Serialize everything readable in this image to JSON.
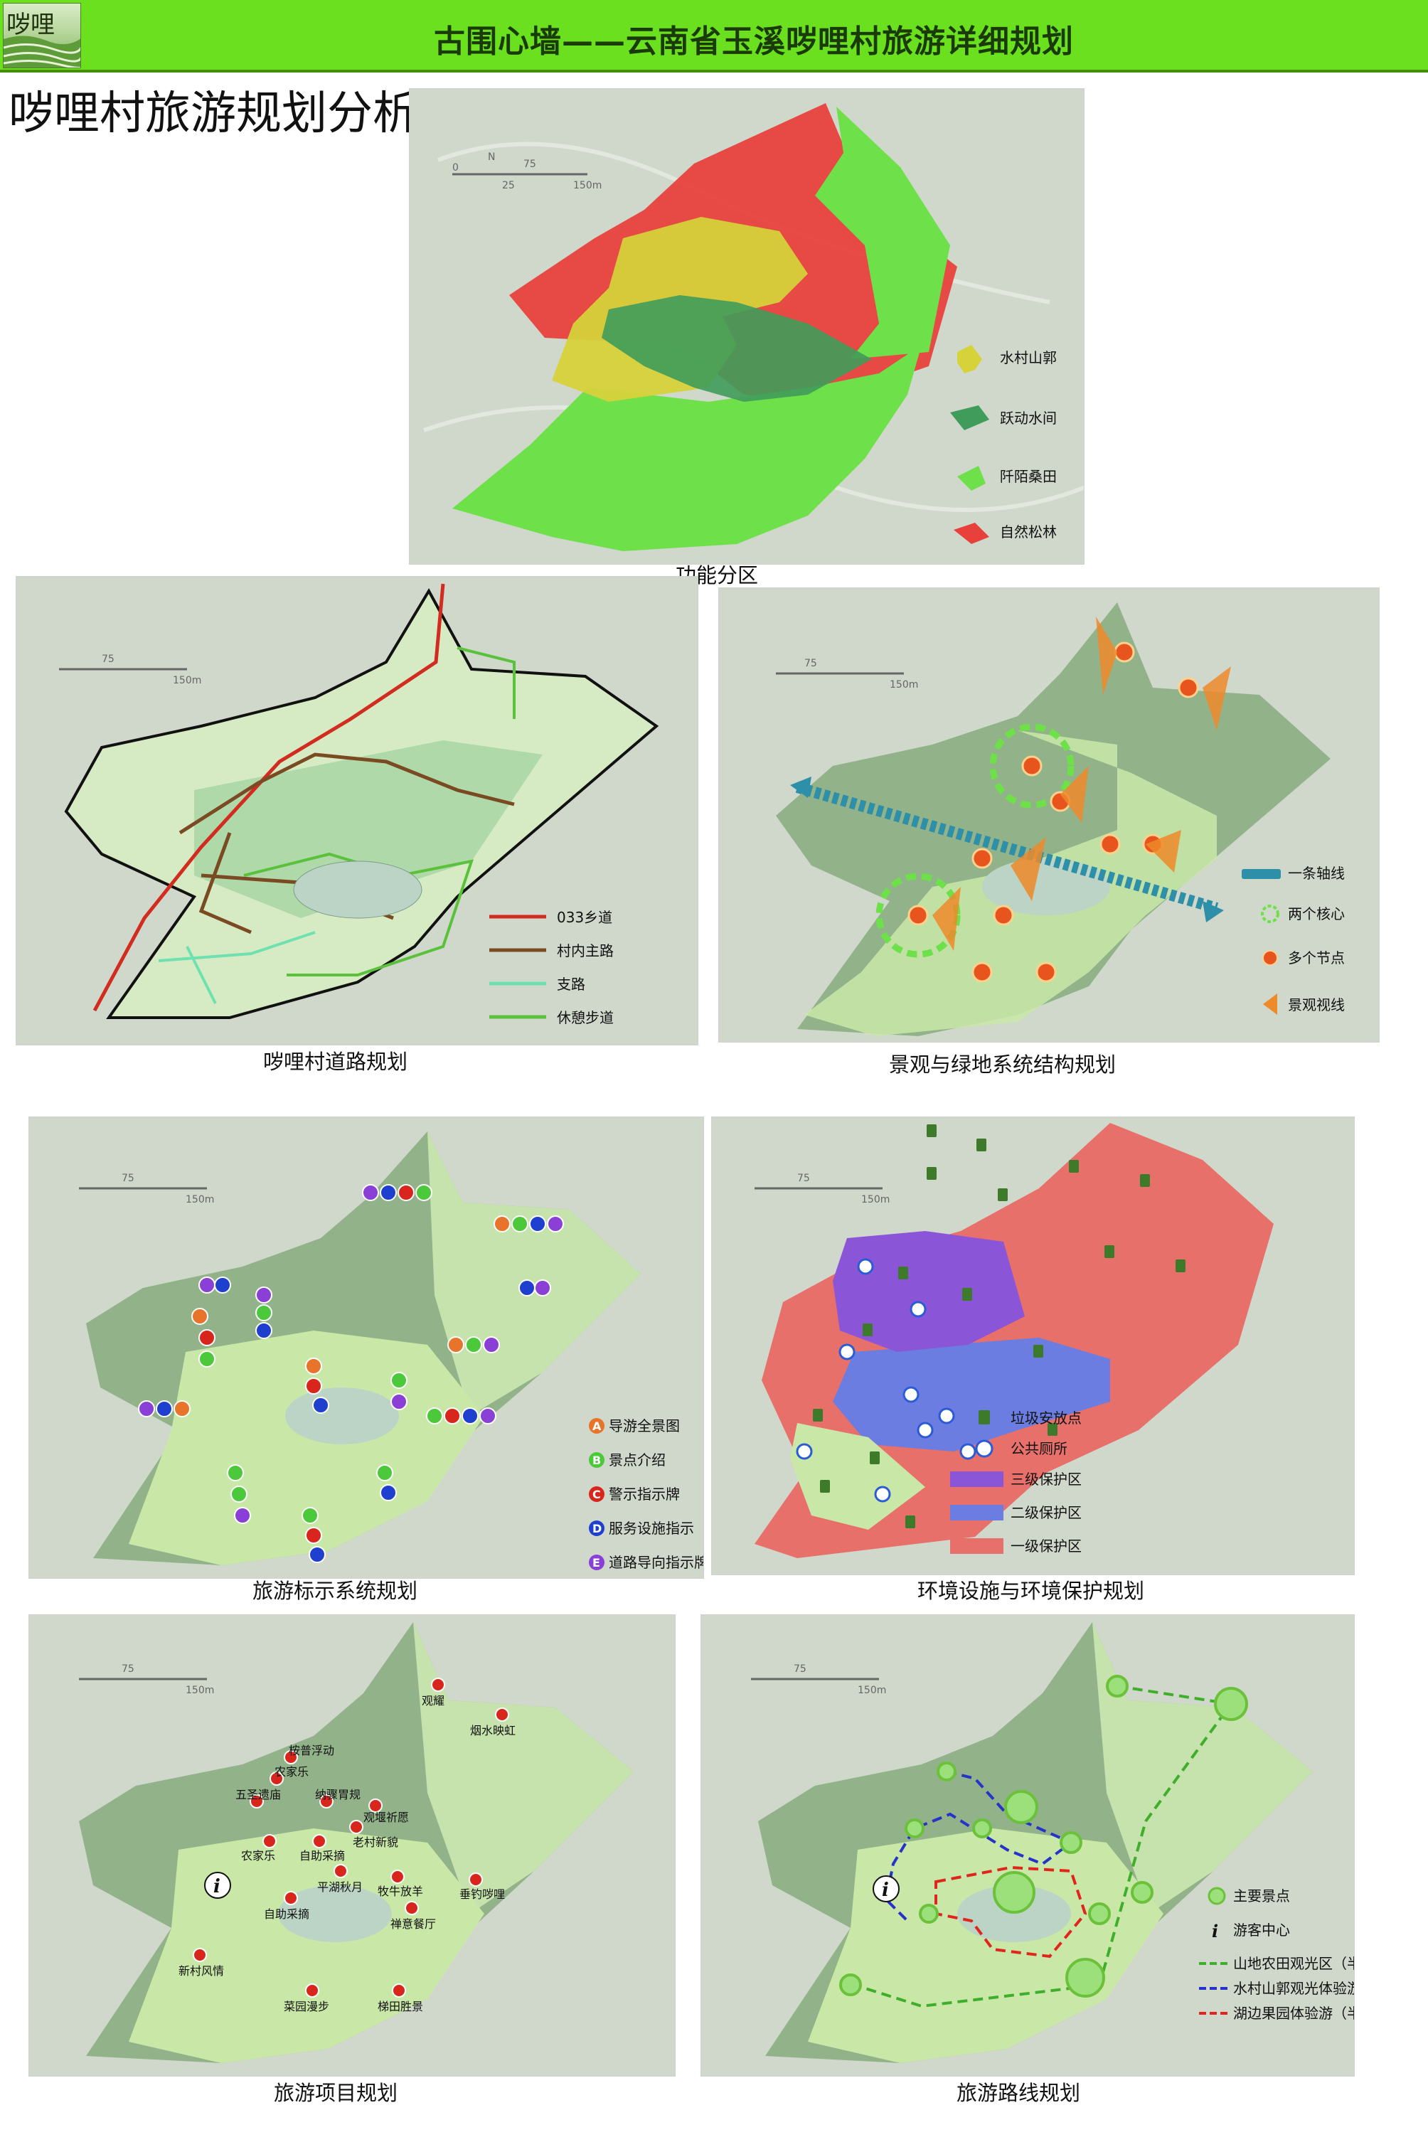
{
  "header": {
    "logo_text": "哕哩",
    "title": "古围心墙——云南省玉溪哕哩村旅游详细规划"
  },
  "page_title": "哕哩村旅游规划分析图：",
  "scale_bar": {
    "north": "N",
    "ticks": [
      "0",
      "25",
      "75",
      "150m"
    ]
  },
  "panels": {
    "function": {
      "caption": "功能分区",
      "legend": [
        {
          "label": "水村山郭",
          "color": "#d6d23a"
        },
        {
          "label": "跃动水间",
          "color": "#3f9c5a"
        },
        {
          "label": "阡陌桑田",
          "color": "#6de04a"
        },
        {
          "label": "自然松林",
          "color": "#e8413c"
        }
      ]
    },
    "road": {
      "caption": "哕哩村道路规划",
      "legend": [
        {
          "label": "033乡道",
          "color": "#d22b1f"
        },
        {
          "label": "村内主路",
          "color": "#7a4a22"
        },
        {
          "label": "支路",
          "color": "#6fe0b0"
        },
        {
          "label": "休憩步道",
          "color": "#59c23a"
        }
      ]
    },
    "landscape": {
      "caption": "景观与绿地系统结构规划",
      "legend": [
        {
          "label": "一条轴线",
          "icon": "axis-icon"
        },
        {
          "label": "两个核心",
          "icon": "core-ring-icon"
        },
        {
          "label": "多个节点",
          "icon": "node-icon"
        },
        {
          "label": "景观视线",
          "icon": "sightline-icon"
        }
      ]
    },
    "signage": {
      "caption": "旅游标示系统规划",
      "legend": [
        {
          "letter": "A",
          "label": "导游全景图",
          "color": "#e8732a"
        },
        {
          "letter": "B",
          "label": "景点介绍",
          "color": "#4cc83b"
        },
        {
          "letter": "C",
          "label": "警示指示牌",
          "color": "#d9261c"
        },
        {
          "letter": "D",
          "label": "服务设施指示",
          "color": "#1f3fcf"
        },
        {
          "letter": "E",
          "label": "道路导向指示牌",
          "color": "#8a3fd6"
        }
      ]
    },
    "environment": {
      "caption": "环境设施与环境保护规划",
      "legend": [
        {
          "label": "垃圾安放点",
          "icon": "trash-bin-icon"
        },
        {
          "label": "公共厕所",
          "icon": "toilet-icon"
        },
        {
          "label": "三级保护区",
          "color": "#8b55d8"
        },
        {
          "label": "二级保护区",
          "color": "#6b7de0"
        },
        {
          "label": "一级保护区",
          "color": "#e8706a"
        }
      ]
    },
    "projects": {
      "caption": "旅游项目规划",
      "labels": [
        "观耀",
        "烟水映虹",
        "桉普浮动",
        "农家乐",
        "五圣遗庙",
        "纳骤胃规",
        "观堰祈愿",
        "老村新貌",
        "农家乐",
        "自助采摘",
        "平湖秋月",
        "牧牛放羊",
        "垂钓哕哩",
        "自助采摘",
        "禅意餐厅",
        "新村风情",
        "菜园漫步",
        "梯田胜景"
      ],
      "info_icon": "i"
    },
    "routes": {
      "caption": "旅游路线规划",
      "legend": [
        {
          "label": "主要景点",
          "icon": "main-spot-icon"
        },
        {
          "label": "游客中心",
          "icon": "visitor-info-icon"
        },
        {
          "label": "山地农田观光区（半日游）",
          "color": "#3fae2a"
        },
        {
          "label": "水村山郭观光体验游（一日游）",
          "color": "#2633c8"
        },
        {
          "label": "湖边果园体验游（半日游）",
          "color": "#e0261c"
        }
      ]
    }
  }
}
